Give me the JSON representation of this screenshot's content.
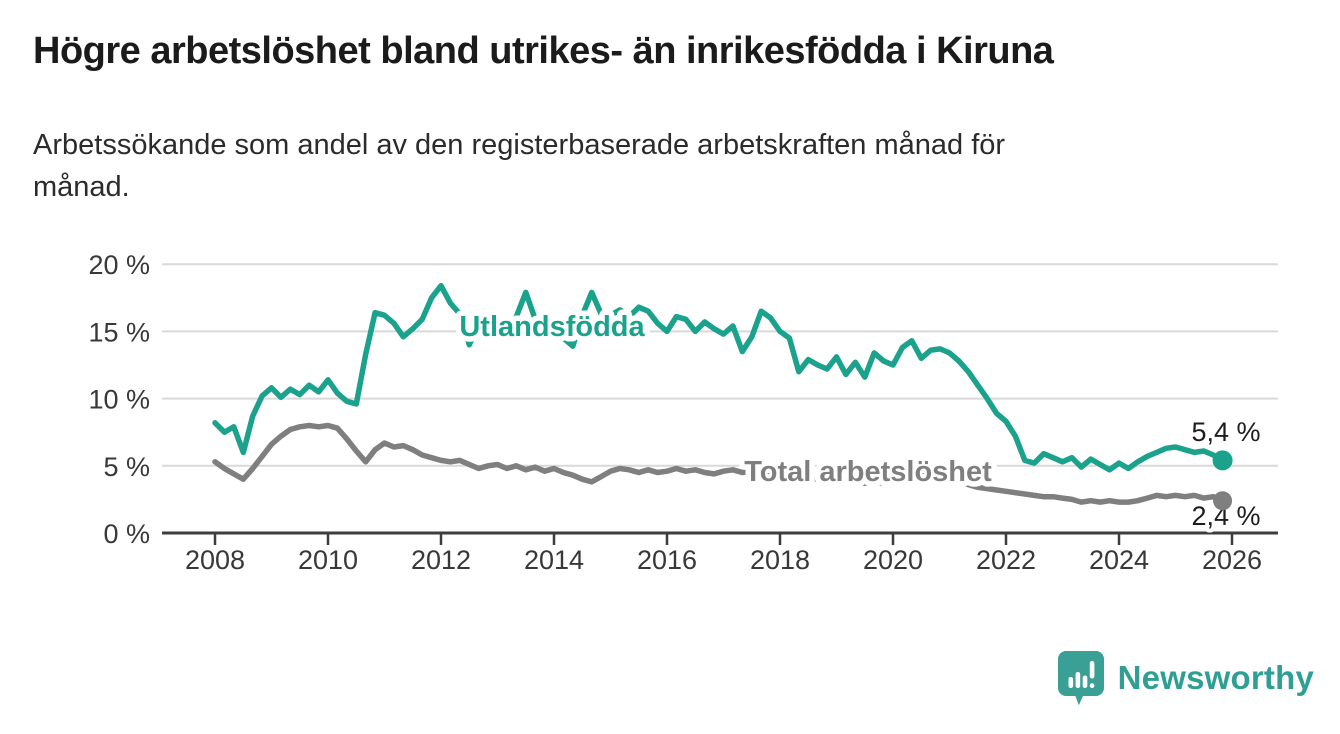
{
  "header": {
    "title": "Högre arbetslöshet bland utrikes- än inrikesfödda i Kiruna",
    "subtitle_lines": [
      "Arbetssökande som andel av den registerbaserade arbetskraften månad för",
      "månad."
    ]
  },
  "footer": {
    "brand_wordmark": "Newsworthy",
    "brand_color": "#2f9f94",
    "logo_icon": "newsworthy-speech-bubble-bar-chart-icon"
  },
  "chart_data": {
    "type": "line",
    "x_unit": "monthly observations",
    "x_start_year": 2008,
    "x_step_months": 2,
    "x_tick_years": [
      2008,
      2010,
      2012,
      2014,
      2016,
      2018,
      2020,
      2022,
      2024,
      2026
    ],
    "y_tick_values": [
      0,
      5,
      10,
      15,
      20
    ],
    "y_tick_labels": [
      "0 %",
      "5 %",
      "10 %",
      "15 %",
      "20 %"
    ],
    "ylim": [
      0,
      20
    ],
    "grid": "horizontal",
    "legend": "inline-labels-on-lines",
    "colors": {
      "axis": "#3d3d3d",
      "grid": "#d9d9d9",
      "tick_text": "#383838",
      "end_label_text": "#1d1d1d"
    },
    "series": [
      {
        "id": "utlandsfodda",
        "name": "Utlandsfödda",
        "color": "#1aa28d",
        "end_value": 5.4,
        "end_label": "5,4 %",
        "values": [
          8.2,
          7.5,
          7.9,
          6.0,
          8.7,
          10.2,
          10.8,
          10.1,
          10.7,
          10.3,
          11.0,
          10.5,
          11.4,
          10.4,
          9.8,
          9.6,
          13.3,
          16.4,
          16.2,
          15.6,
          14.6,
          15.2,
          15.9,
          17.5,
          18.4,
          17.1,
          16.3,
          14.0,
          15.6,
          16.2,
          15.8,
          15.3,
          16.1,
          17.9,
          15.9,
          15.4,
          15.6,
          14.5,
          13.9,
          16.2,
          17.9,
          16.3,
          16.2,
          16.6,
          16.1,
          16.8,
          16.5,
          15.6,
          15.0,
          16.1,
          15.9,
          15.0,
          15.7,
          15.2,
          14.8,
          15.4,
          13.5,
          14.6,
          16.5,
          16.0,
          15.0,
          14.5,
          12.0,
          12.9,
          12.5,
          12.2,
          13.1,
          11.8,
          12.7,
          11.6,
          13.4,
          12.8,
          12.5,
          13.8,
          14.3,
          13.0,
          13.6,
          13.7,
          13.4,
          12.8,
          12.0,
          11.0,
          10.0,
          8.9,
          8.3,
          7.2,
          5.4,
          5.2,
          5.9,
          5.6,
          5.3,
          5.6,
          4.9,
          5.5,
          5.1,
          4.7,
          5.2,
          4.8,
          5.3,
          5.7,
          6.0,
          6.3,
          6.4,
          6.2,
          6.0,
          6.1,
          5.8,
          5.4
        ]
      },
      {
        "id": "total",
        "name": "Total arbetslöshet",
        "color": "#7f7f7f",
        "end_value": 2.4,
        "end_label": "2,4 %",
        "values": [
          5.3,
          4.8,
          4.4,
          4.0,
          4.8,
          5.7,
          6.6,
          7.2,
          7.7,
          7.9,
          8.0,
          7.9,
          8.0,
          7.8,
          7.0,
          6.1,
          5.3,
          6.2,
          6.7,
          6.4,
          6.5,
          6.2,
          5.8,
          5.6,
          5.4,
          5.3,
          5.4,
          5.1,
          4.8,
          5.0,
          5.1,
          4.8,
          5.0,
          4.7,
          4.9,
          4.6,
          4.8,
          4.5,
          4.3,
          4.0,
          3.8,
          4.2,
          4.6,
          4.8,
          4.7,
          4.5,
          4.7,
          4.5,
          4.6,
          4.8,
          4.6,
          4.7,
          4.5,
          4.4,
          4.6,
          4.7,
          4.5,
          4.6,
          4.5,
          4.4,
          4.3,
          4.2,
          4.3,
          4.1,
          4.0,
          3.9,
          3.9,
          3.8,
          3.9,
          3.7,
          3.8,
          3.7,
          3.8,
          4.1,
          4.4,
          4.3,
          4.2,
          4.1,
          4.0,
          3.8,
          3.6,
          3.4,
          3.3,
          3.2,
          3.1,
          3.0,
          2.9,
          2.8,
          2.7,
          2.7,
          2.6,
          2.5,
          2.3,
          2.4,
          2.3,
          2.4,
          2.3,
          2.3,
          2.4,
          2.6,
          2.8,
          2.7,
          2.8,
          2.7,
          2.8,
          2.6,
          2.7,
          2.4
        ]
      }
    ]
  }
}
